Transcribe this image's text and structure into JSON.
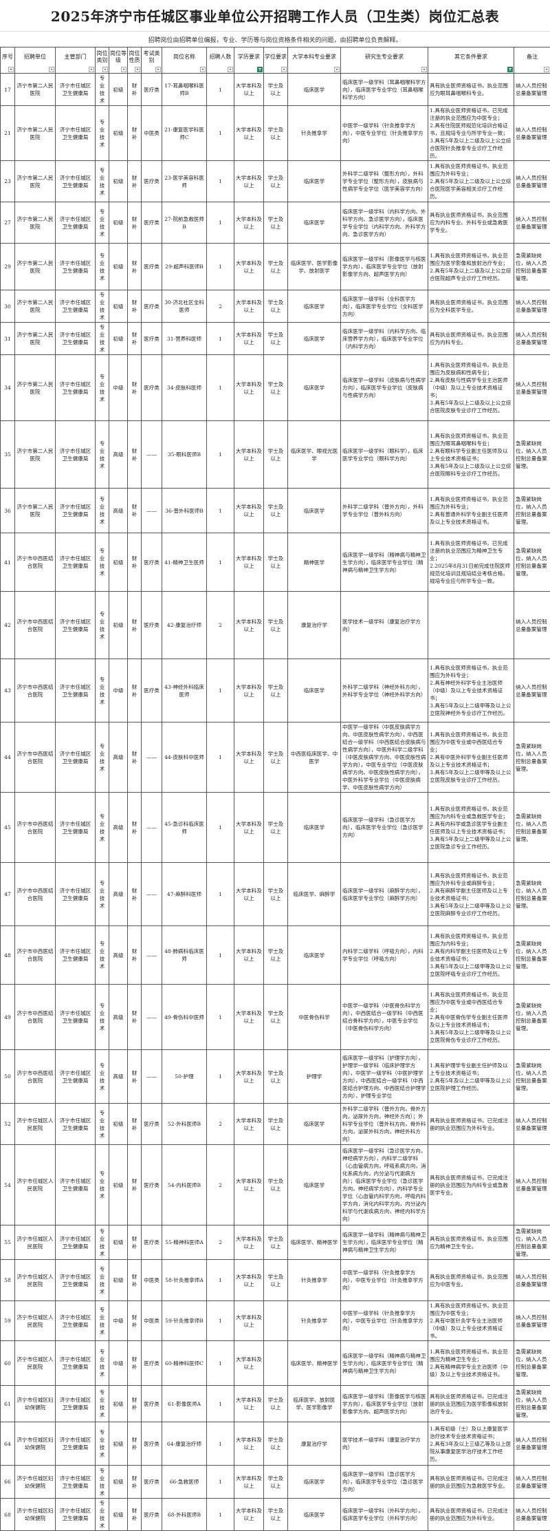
{
  "title": "2025年济宁市任城区事业单位公开招聘工作人员（卫生类）岗位汇总表",
  "note": "招聘岗位由招聘单位编报，专业、学历等与岗位资格条件相关的问题，由招聘单位负责解释。",
  "headers": [
    "序号",
    "招聘单位",
    "主管部门",
    "岗位类别",
    "岗位等级",
    "岗位性质",
    "考试类别",
    "岗位名称",
    "招聘人数",
    "学历要求",
    "学位要求",
    "大学本科专业要求",
    "研究生专业要求",
    "其它条件要求",
    "备注"
  ],
  "filter_icons": {
    "active_columns": [
      "学历要求",
      "其它条件要求"
    ],
    "active_color": "#1f8a5b",
    "icon": "filter-dropdown-icon"
  },
  "rows": [
    [
      "17",
      "济宁市第二人民医院",
      "济宁市任城区卫生健康局",
      "专业技术",
      "初级",
      "财补",
      "医疗类",
      "17-耳鼻咽喉科医师B",
      "1",
      "大学本科及以上",
      "学士及以上",
      "临床医学",
      "临床医学一级学科（耳鼻咽喉科学方向），临床医学专业学位（耳鼻咽喉科学方向）",
      "具有执业医师资格证书，执业范围应为眼耳鼻咽喉科专业。",
      "纳入人员控制总量备案管理"
    ],
    [
      "21",
      "济宁市第二人民医院",
      "济宁市任城区卫生健康局",
      "专业技术",
      "初级",
      "财补",
      "中医类",
      "21-康复医学科医师C",
      "1",
      "大学本科及以上",
      "学士及以上",
      "针灸推拿学",
      "中医学一级学科（针灸推拿学方向），中医专业学位（针灸推拿学方向）",
      "1.具有执业医师资格证书，已完成注册的执业范围应为中医专业；\n2.具有住院医师规范化培训合格证书，且规培专业与所学专业一致；\n3.具有5年及以上二级及以上公立综合医院针灸推拿专业诊疗工作经历。",
      "纳入人员控制总量备案管理"
    ],
    [
      "23",
      "济宁市第二人民医院",
      "济宁市任城区卫生健康局",
      "专业技术",
      "初级",
      "财补",
      "医疗类",
      "23-医学美容科医师",
      "1",
      "大学本科及以上",
      "学士及以上",
      "临床医学",
      "外科学二级学科（整形方向），外科学专业学位（整形方向），皮肤病与性病学专业学位（医学美容学方向）",
      "1.具有执业医师资格证书，执业范围应为外科专业；\n2.具有5年及以上二级及以上公立综合医院医学美容相关诊疗工作经历。",
      "纳入人员控制总量备案管理"
    ],
    [
      "27",
      "济宁市第二人民医院",
      "济宁市任城区卫生健康局",
      "专业技术",
      "初级",
      "财补",
      "医疗类",
      "27-院前急救医师B",
      "1",
      "大学本科及以上",
      "学士及以上",
      "临床医学",
      "临床医学一级学科（内科学方向、外科学方向、急诊医学方向），临床医学专业学位（内科学方向、外科学方向、急诊医学方向）",
      "具有执业医师资格证书，执业范围应为内科专业、外科专业或急救医学专业。",
      "纳入人员控制总量备案管理"
    ],
    [
      "29",
      "济宁市第二人民医院",
      "济宁市任城区卫生健康局",
      "专业技术",
      "初级",
      "财补",
      "医疗类",
      "29-超声科医师B",
      "1",
      "大学本科及以上",
      "学士及以上",
      "临床医学、医学影像学、放射医学",
      "临床医学一级学科（影像医学与核医学方向），临床医学专业学位（放射影像学方向、超声医学方向）",
      "1.具有执业医师资格证书，执业范围应为医学影像和放射治疗专业；\n2.具有5年及以上二级及以上公立综合医院超声专业诊疗工作经历。",
      "急需紧缺岗位，纳入人员控制总量备案管理。"
    ],
    [
      "30",
      "济宁市第二人民医院",
      "济宁市任城区卫生健康局",
      "专业技术",
      "初级",
      "财补",
      "医疗类",
      "30-济北社区全科医师",
      "2",
      "大学本科及以上",
      "学士及以上",
      "临床医学",
      "临床医学一级学科（全科医学方向），临床医学专业学位（全科医学方向）",
      "具有执业医师资格证书，执业范围应为全科医学专业。",
      "纳入人员控制总量备案管理"
    ],
    [
      "31",
      "济宁市第二人民医院",
      "济宁市任城区卫生健康局",
      "专业技术",
      "初级",
      "财补",
      "医疗类",
      "31-营养科医师",
      "1",
      "大学本科及以上",
      "学士及以上",
      "临床医学",
      "临床医学一级学科（内科学方向、临床营养学方向），临床医学专业学位（内科学方向）",
      "具有执业医师资格证书，执业范围应为内科专业。",
      "纳入人员控制总量备案管理"
    ],
    [
      "34",
      "济宁市第二人民医院",
      "济宁市任城区卫生健康局",
      "专业技术",
      "中级",
      "财补",
      "医疗类",
      "34-皮肤科医师",
      "1",
      "大学本科及以上",
      "学士及以上",
      "临床医学",
      "临床医学一级学科（皮肤病与性病学方向），临床医学专业学位（皮肤病与性病学方向）",
      "1.具有执业医师资格证书，执业范围应为皮肤病和性病专业；\n2.具有皮肤与性病学专业主治医师（中级）及以上专业技术资格证书；\n3.具有5年及以上二级及以上公立综合医院皮肤专业诊疗工作经历。",
      "纳入人员控制总量备案管理"
    ],
    [
      "35",
      "济宁市第二人民医院",
      "济宁市任城区卫生健康局",
      "专业技术",
      "高级",
      "财补",
      "——",
      "35-眼科医师B",
      "1",
      "大学本科及以上",
      "学士及以上",
      "临床医学、眼视光医学",
      "临床医学一级学科（眼科学），临床医学专业学位（眼科学方向）",
      "1.具有执业医师资格证书，执业范围应为眼耳鼻咽喉科专业；\n2.具有眼科学专业副主任医师及以上专业技术资格证书；\n3.具有5年及以上二级及以上公立综合医院眼科专业诊疗工作经历。",
      "急需紧缺岗位，纳入人员控制总量备案管理。"
    ],
    [
      "36",
      "济宁市第二人民医院",
      "济宁市任城区卫生健康局",
      "专业技术",
      "高级",
      "财补",
      "——",
      "36-普外科医师B",
      "1",
      "大学本科及以上",
      "学士及以上",
      "临床医学",
      "外科学二级学科（普外方向），外科学专业学位（普外科方向）",
      "1.具有执业医师资格证书，执业范围应为外科专业；\n2.具有普通外科学专业副主任医师及以上专业技术资格证书。",
      "急需紧缺岗位，纳入人员控制总量备案管理。"
    ],
    [
      "41",
      "济宁市中西医结合医院",
      "济宁市任城区卫生健康局",
      "专业技术",
      "初级",
      "财补",
      "医疗类",
      "41-精神卫生医师",
      "1",
      "大学本科及以上",
      "学士及以上",
      "精神医学",
      "临床医学一级学科（精神病与精神卫生学方向），临床医学专业学位（精神病与精神卫生学方向）",
      "1.具有执业医师资格证书，已完成注册的执业范围应为精神卫生专业；\n2.2025年8月31日前完成住院医师规范化培训且规培结业考核合格，规培专业应与所学专业一致。",
      "急需紧缺岗位，纳入人员控制总量备案管理。"
    ],
    [
      "42",
      "济宁市中西医结合医院",
      "济宁市任城区卫生健康局",
      "专业技术",
      "初级",
      "财补",
      "医疗类",
      "42-康复治疗师",
      "2",
      "大学本科及以上",
      "学士及以上",
      "康复治疗学",
      "医学技术一级学科（康复治疗学方向）",
      "",
      "纳入人员控制总量备案管理"
    ],
    [
      "43",
      "济宁市中西医结合医院",
      "济宁市任城区卫生健康局",
      "专业技术",
      "中级",
      "财补",
      "医疗类",
      "43-神经外科临床医师",
      "1",
      "大学本科及以上",
      "学士及以上",
      "临床医学",
      "外科学二级学科（神经外科方向），外科学专业学位（神经外科学方向）",
      "1.具有执业医师资格证书，执业范围应为外科专业；\n2.具有神经外科学专业主治医师（中级）及以上专业技术资格证书；\n3.具有5年及以上二级甲等及以上公立医院神经外专业诊疗工作经历。",
      "纳入人员控制总量备案管理"
    ],
    [
      "44",
      "济宁市中西医结合医院",
      "济宁市任城区卫生健康局",
      "专业技术",
      "高级",
      "财补",
      "——",
      "44-皮肤科中医师",
      "1",
      "大学本科及以上",
      "学士及以上",
      "中西医临床医学、中医学",
      "中医学一级学科（中医皮肤病学方向、中医皮肤性病学方向），中西医结合一级学科（中西医结合皮肤病与性病学方向），中医外科学二级学科（中医皮肤病学方向、中医皮肤性病学方向），中医专业学位（中医皮肤病学方向、中医皮肤性病学方向），中医外科学专业学位（中医皮肤病学、中医皮肤性病学方向）",
      "1.具有执业医师资格证书，执业范围应为中医专业或中西医结合专业；\n2.具有中医外科学专业副主任医师及以上专业技术资格证书；\n3.具有5年及以上二级甲等及以上公立医院皮肤专业诊疗工作经历。",
      "急需紧缺岗位，纳入人员控制总量备案管理。"
    ],
    [
      "45",
      "济宁市中西医结合医院",
      "济宁市任城区卫生健康局",
      "专业技术",
      "高级",
      "财补",
      "——",
      "45-急诊科临床医师",
      "1",
      "大学本科及以上",
      "学士及以上",
      "临床医学",
      "临床医学一级学科（急诊医学方向），临床医学专业学位（急诊医学方向）",
      "1.具有执业医师资格证书，执业范围应为内科专业或急救医学专业；\n2.具有内科学或急诊医学专业副主任医师及以上专业技术资格证书；\n3.具有5年及以上二级甲等及以上公立医院急诊专业工作经历。",
      "急需紧缺岗位，纳入人员控制总量备案管理。"
    ],
    [
      "47",
      "济宁市中西医结合医院",
      "济宁市任城区卫生健康局",
      "专业技术",
      "高级",
      "财补",
      "——",
      "47-麻醉科医师",
      "1",
      "大学本科及以上",
      "学士及以上",
      "临床医学、麻醉学",
      "临床医学一级学科（麻醉学方向），临床医学专业学位（麻醉学方向）",
      "1.具有执业医师资格证书，执业范围应为外科专业或麻醉专业；\n2.具有麻醉学副主任医师及以上专业技术资格证书；\n3.具有5年及以上二级甲等及以上公立医院麻醉专业诊疗工作经历。",
      "急需紧缺岗位，纳入人员控制总量备案管理。"
    ],
    [
      "48",
      "济宁市中西医结合医院",
      "济宁市任城区卫生健康局",
      "专业技术",
      "高级",
      "财补",
      "——",
      "48-肺病科临床医师",
      "1",
      "大学本科及以上",
      "学士及以上",
      "临床医学",
      "内科学二级学科（呼吸方向），内科学专业学位（呼吸方向）",
      "1.具有执业医师资格证书，执业范围应为内科专业；\n2.具有内科学副主任医师及以上专业技术资格证书；\n3.具有5年及以上二级甲等及以上公立医院呼吸专业诊疗工作经历。",
      "急需紧缺岗位，纳入人员控制总量备案管理。"
    ],
    [
      "49",
      "济宁市中西医结合医院",
      "济宁市任城区卫生健康局",
      "专业技术",
      "高级",
      "财补",
      "——",
      "49-骨伤科中医师",
      "1",
      "大学本科及以上",
      "学士及以上",
      "中医骨伤科学",
      "中医学一级学科（中医骨伤科学方向），中西医结合一级学科（中西医结合骨科学方向），中医专业学位（中医骨伤科学方向）",
      "1.具有执业医师资格证书，执业范围应为中医专业或中西医结合专业；\n2.具有中医骨伤学专业副主任医师及以上专业技术资格证书；\n3.具有5年及以上二级甲等及以上公立医院骨伤专业诊疗工作经历。",
      "急需紧缺岗位，纳入人员控制总量备案管理。"
    ],
    [
      "50",
      "济宁市中西医结合医院",
      "济宁市任城区卫生健康局",
      "专业技术",
      "高级",
      "财补",
      "——",
      "50-护理",
      "1",
      "大学本科及以上",
      "学士及以上",
      "护理学",
      "临床医学一级学科（护理学方向），护理学一级学科（临床护理学方向），中医学一级学科（中医护理学方向），中西医结合一级学科（中西医结合护理方向、中西医结合护理学方向），护理专业学位",
      "1.具有护理学专业副主任护师及以上专业技术资格证书；\n2.具有5年及以上二级甲等及以上公立医院护理工作经历。",
      "急需紧缺岗位，纳入人员控制总量备案管理。"
    ],
    [
      "52",
      "济宁市任城区人民医院",
      "济宁市任城区卫生健康局",
      "专业技术",
      "初级",
      "财补",
      "医疗类",
      "52-外科医师B",
      "2",
      "大学本科及以上",
      "学士及以上",
      "临床医学",
      "外科学二级学科（普外方向，骨外方向，泌尿外方向，神经外方向）；外科学专业学位（普外科方向，骨外科方向，泌尿外科方向，神经外科方向）",
      "具有执业医师资格证书，已完成注册的执业范围应为外科专业。",
      "纳入人员控制总量备案管理"
    ],
    [
      "54",
      "济宁市任城区人民医院",
      "济宁市任城区卫生健康局",
      "专业技术",
      "初级",
      "财补",
      "医疗类",
      "54-内科医师B",
      "2",
      "大学本科及以上",
      "学士及以上",
      "临床医学",
      "临床医学一级学科（急诊医学方向，神经病学方向），内科学二级学科（心血管病方向，呼吸系病方向，消化系病方向，内分泌与代谢病方向）；临床医学专业学位（急诊医学方向，神经病学方向），内科学专业学位（心血管内科学方向，呼吸内科学方向，消化内科学方向，内分泌内科学与代谢疾病方向，神经内科学方向）",
      "具有执业医师资格证书，已完成注册的执业范围应为内科专业或急救医学专业。",
      "纳入人员控制总量备案管理"
    ],
    [
      "55",
      "济宁市任城区人民医院",
      "济宁市任城区卫生健康局",
      "专业技术",
      "初级",
      "财补",
      "医疗类",
      "55-精神科医师A",
      "2",
      "大学本科及以上",
      "学士及以上",
      "临床医学、精神医学",
      "临床医学一级学科（精神病与精神卫生学方向），临床医学专业学位（精神病与精神卫生学方向）",
      "具有执业医师资格证书，执业范围应为精神卫生专业。",
      "急需紧缺岗位，纳入人员控制总量备案管理。"
    ],
    [
      "58",
      "济宁市任城区人民医院",
      "济宁市任城区卫生健康局",
      "专业技术",
      "初级",
      "财补",
      "中医类",
      "58-针灸推拿师A",
      "1",
      "大学本科及以上",
      "学士及以上",
      "针灸推拿学",
      "中医学一级学科（针灸推拿学方向），中医专业学位（针灸推拿学方向）",
      "具有执业医师资格证书，执业范围应为中医专业。",
      "纳入人员控制总量备案管理"
    ],
    [
      "59",
      "济宁市任城区人民医院",
      "济宁市任城区卫生健康局",
      "专业技术",
      "中级",
      "财补",
      "中医类",
      "59-针灸推拿师B",
      "1",
      "大学本科及以上",
      "",
      "针灸推拿学",
      "中医学一级学科（针灸推拿学方向），中医专业学位（针灸推拿学方向）",
      "1.具有执业医师资格证书，执业范围应为中医专业；\n2.具有中医针灸学专业主治医师（中级）及以上专业技术资格证书。",
      "纳入人员控制总量备案管理"
    ],
    [
      "60",
      "济宁市任城区人民医院",
      "济宁市任城区卫生健康局",
      "专业技术",
      "中级",
      "财补",
      "医疗类",
      "60-精神科医师C",
      "1",
      "大学本科及以上",
      "",
      "临床医学、精神医学",
      "临床医学一级学科（精神病与精神卫生学方向），临床医学专业学位（精神病与精神卫生学方向）",
      "1.具有执业医师资格证书，执业范围应为精神卫生专业；\n2.具有精神病学专业主治医师（中级）及以上专业技术资格证书。",
      "急需紧缺岗位，纳入人员控制总量备案管理。"
    ],
    [
      "61",
      "济宁市任城区妇幼保健院",
      "济宁市任城区卫生健康局",
      "专业技术",
      "初级",
      "财补",
      "医疗类",
      "61-影像医师A",
      "1",
      "大学本科及以上",
      "学士及以上",
      "临床医学、放射医学、医学影像学",
      "临床医学一级学科（影像医学与核医学方向），临床医学专业学位（放射影像学方向、超声医学方向）",
      "具有执业医师资格证书，已完成注册的执业范围应为医学影像和放射治疗专业。",
      "急需紧缺岗位，纳入人员控制总量备案管理。"
    ],
    [
      "64",
      "济宁市任城区妇幼保健院",
      "济宁市任城区卫生健康局",
      "专业技术",
      "初级",
      "财补",
      "医疗类",
      "64-康复治疗师",
      "1",
      "大学本科及以上",
      "学士及以上",
      "康复治疗学",
      "医学技术一级学科（康复治疗学方向）",
      "1.具有初级（士）及以上康复医学治疗技术专业技术资格证书；\n2.具有3年及以上三级乙等及以上医院从事康复医学治疗技术工作经历。",
      "纳入人员控制总量备案管理"
    ],
    [
      "66",
      "济宁市任城区妇幼保健院",
      "济宁市任城区卫生健康局",
      "专业技术",
      "初级",
      "财补",
      "医疗类",
      "66-急救医师",
      "1",
      "大学本科及以上",
      "学士及以上",
      "临床医学",
      "临床医学一级学科（急诊医学方向），临床医学专业学位（急诊医学方向）",
      "具有执业医师资格证书，已完成注册的执业范围应为急救医学专业。",
      "纳入人员控制总量备案管理"
    ],
    [
      "68",
      "济宁市任城区妇幼保健院",
      "济宁市任城区卫生健康局",
      "专业技术",
      "初级",
      "财补",
      "医疗类",
      "68-外科医师B",
      "1",
      "大学本科及以上",
      "学士及以上",
      "临床医学",
      "临床医学一级学科（外科学方向），临床医学专业学位（外科学方向）",
      "具有执业医师资格证书，已完成注册的执业范围应为外科专业。",
      "纳入人员控制总量备案管理"
    ]
  ]
}
